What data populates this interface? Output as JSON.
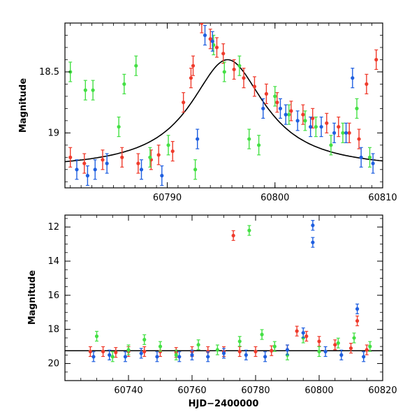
{
  "colors": {
    "red": "#ef3b2c",
    "green": "#44e044",
    "blue": "#1f5fe0",
    "curve": "#000000"
  },
  "chart_data": [
    {
      "type": "scatter",
      "title": "",
      "xlabel": "",
      "ylabel": "Magnitude",
      "xlim": [
        60780.5,
        60810
      ],
      "ylim": [
        19.45,
        18.1
      ],
      "y_inverted": true,
      "xticks": [
        {
          "v": 60790,
          "label": "60790"
        },
        {
          "v": 60800,
          "label": "60800"
        },
        {
          "v": 60810,
          "label": "60810"
        }
      ],
      "yticks": [
        {
          "v": 18.5,
          "label": "18.5"
        },
        {
          "v": 19,
          "label": "19"
        }
      ],
      "model_curve": {
        "shape": "lorentzian",
        "peak_hjd": 60795.6,
        "peak_mag": 18.4,
        "baseline_mag": 19.3
      },
      "series": [
        {
          "color": "red",
          "points": [
            [
              60781.0,
              19.2
            ],
            [
              60782.3,
              19.25
            ],
            [
              60784.0,
              19.22
            ],
            [
              60785.8,
              19.2
            ],
            [
              60787.3,
              19.25
            ],
            [
              60788.5,
              19.22
            ],
            [
              60789.2,
              19.18
            ],
            [
              60790.5,
              19.15
            ],
            [
              60791.5,
              18.75
            ],
            [
              60792.2,
              18.55
            ],
            [
              60792.4,
              18.45
            ],
            [
              60793.2,
              18.1
            ],
            [
              60794.0,
              18.23
            ],
            [
              60794.6,
              18.3
            ],
            [
              60795.2,
              18.35
            ],
            [
              60796.2,
              18.48
            ],
            [
              60797.1,
              18.55
            ],
            [
              60798.1,
              18.62
            ],
            [
              60799.2,
              18.68
            ],
            [
              60800.2,
              18.75
            ],
            [
              60801.5,
              18.82
            ],
            [
              60802.6,
              18.85
            ],
            [
              60803.5,
              18.88
            ],
            [
              60804.8,
              18.92
            ],
            [
              60805.9,
              18.95
            ],
            [
              60806.9,
              19.0
            ],
            [
              60807.8,
              19.05
            ],
            [
              60808.5,
              18.6
            ],
            [
              60809.4,
              18.4
            ]
          ]
        },
        {
          "color": "green",
          "points": [
            [
              60781.0,
              18.5
            ],
            [
              60782.4,
              18.65
            ],
            [
              60783.1,
              18.65
            ],
            [
              60785.5,
              18.95
            ],
            [
              60786.0,
              18.6
            ],
            [
              60787.1,
              18.45
            ],
            [
              60788.4,
              19.2
            ],
            [
              60790.1,
              19.1
            ],
            [
              60792.6,
              19.3
            ],
            [
              60794.3,
              18.28
            ],
            [
              60795.3,
              18.5
            ],
            [
              60796.7,
              18.45
            ],
            [
              60797.6,
              19.05
            ],
            [
              60798.5,
              19.1
            ],
            [
              60800.0,
              18.7
            ],
            [
              60801.3,
              18.85
            ],
            [
              60802.8,
              18.9
            ],
            [
              60803.8,
              18.95
            ],
            [
              60805.2,
              19.1
            ],
            [
              60806.3,
              19.0
            ],
            [
              60807.6,
              18.8
            ],
            [
              60808.8,
              19.2
            ]
          ]
        },
        {
          "color": "blue",
          "points": [
            [
              60781.6,
              19.3
            ],
            [
              60782.6,
              19.35
            ],
            [
              60783.3,
              19.3
            ],
            [
              60784.4,
              19.25
            ],
            [
              60787.6,
              19.3
            ],
            [
              60789.5,
              19.35
            ],
            [
              60792.8,
              19.05
            ],
            [
              60793.5,
              18.2
            ],
            [
              60794.2,
              18.25
            ],
            [
              60798.9,
              18.8
            ],
            [
              60800.5,
              18.8
            ],
            [
              60801.0,
              18.85
            ],
            [
              60802.1,
              18.9
            ],
            [
              60803.3,
              18.95
            ],
            [
              60804.3,
              18.95
            ],
            [
              60805.5,
              19.0
            ],
            [
              60806.6,
              19.0
            ],
            [
              60807.2,
              18.55
            ],
            [
              60808.0,
              19.2
            ],
            [
              60809.1,
              19.25
            ]
          ]
        }
      ]
    },
    {
      "type": "scatter",
      "title": "",
      "xlabel": "HJD−2400000",
      "ylabel": "Magnitude",
      "xlim": [
        60720,
        60820
      ],
      "ylim": [
        21,
        11.3
      ],
      "y_inverted": true,
      "xticks": [
        {
          "v": 60740,
          "label": "60740"
        },
        {
          "v": 60760,
          "label": "60760"
        },
        {
          "v": 60780,
          "label": "60780"
        },
        {
          "v": 60800,
          "label": "60800"
        },
        {
          "v": 60820,
          "label": "60820"
        }
      ],
      "yticks": [
        {
          "v": 12,
          "label": "12"
        },
        {
          "v": 14,
          "label": "14"
        },
        {
          "v": 16,
          "label": "16"
        },
        {
          "v": 18,
          "label": "18"
        },
        {
          "v": 20,
          "label": "20"
        }
      ],
      "baseline_mag": 19.25,
      "series": [
        {
          "color": "red",
          "points": [
            [
              60728,
              19.3
            ],
            [
              60732,
              19.3
            ],
            [
              60736,
              19.35
            ],
            [
              60740,
              19.3
            ],
            [
              60745,
              19.3
            ],
            [
              60750,
              19.3
            ],
            [
              60755,
              19.35
            ],
            [
              60760,
              19.3
            ],
            [
              60765,
              19.3
            ],
            [
              60770,
              19.3
            ],
            [
              60773,
              12.5
            ],
            [
              60775,
              19.3
            ],
            [
              60780,
              19.3
            ],
            [
              60785,
              19.25
            ],
            [
              60790,
              19.2
            ],
            [
              60793,
              18.1
            ],
            [
              60796,
              18.4
            ],
            [
              60800,
              18.7
            ],
            [
              60805,
              18.9
            ],
            [
              60810,
              19.1
            ],
            [
              60812,
              17.5
            ],
            [
              60815,
              19.2
            ]
          ]
        },
        {
          "color": "green",
          "points": [
            [
              60730,
              18.4
            ],
            [
              60735,
              19.6
            ],
            [
              60740,
              19.2
            ],
            [
              60745,
              18.6
            ],
            [
              60750,
              19.0
            ],
            [
              60755,
              19.5
            ],
            [
              60762,
              18.9
            ],
            [
              60768,
              19.2
            ],
            [
              60775,
              18.7
            ],
            [
              60778,
              12.2
            ],
            [
              60782,
              18.3
            ],
            [
              60786,
              19.0
            ],
            [
              60790,
              19.5
            ],
            [
              60795,
              18.5
            ],
            [
              60800,
              19.3
            ],
            [
              60806,
              18.8
            ],
            [
              60811,
              18.5
            ],
            [
              60816,
              19.0
            ]
          ]
        },
        {
          "color": "blue",
          "points": [
            [
              60729,
              19.6
            ],
            [
              60734,
              19.5
            ],
            [
              60739,
              19.6
            ],
            [
              60744,
              19.4
            ],
            [
              60749,
              19.6
            ],
            [
              60756,
              19.6
            ],
            [
              60760,
              19.5
            ],
            [
              60765,
              19.6
            ],
            [
              60770,
              19.4
            ],
            [
              60777,
              19.5
            ],
            [
              60783,
              19.6
            ],
            [
              60790,
              19.2
            ],
            [
              60795,
              18.2
            ],
            [
              60798,
              11.9
            ],
            [
              60798,
              12.9
            ],
            [
              60802,
              19.3
            ],
            [
              60807,
              19.5
            ],
            [
              60812,
              16.8
            ],
            [
              60814,
              19.6
            ]
          ]
        }
      ]
    }
  ]
}
